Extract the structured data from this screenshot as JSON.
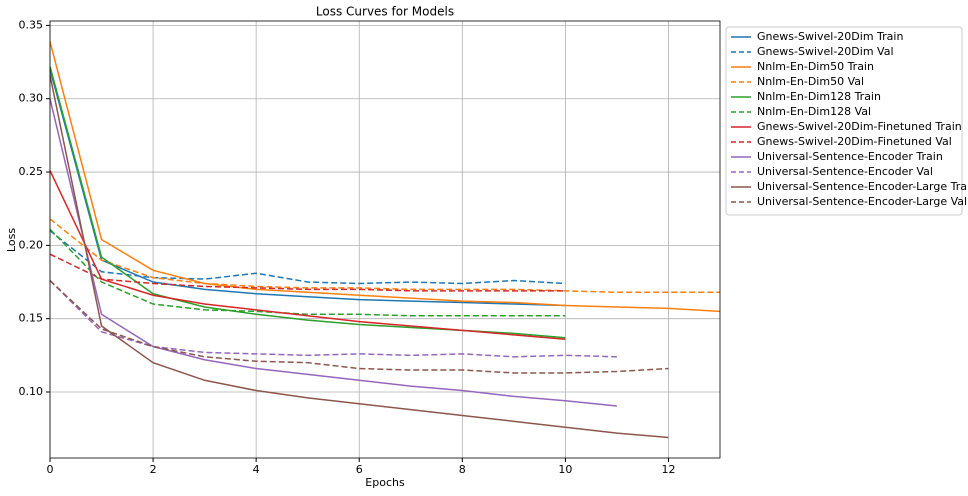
{
  "chart_data": {
    "type": "line",
    "title": "Loss Curves for Models",
    "x_label": "Epochs",
    "y_label": "Loss",
    "x": [
      0,
      1,
      2,
      3,
      4,
      5,
      6,
      7,
      8,
      9,
      10,
      11,
      12,
      13
    ],
    "xlim": [
      0,
      13
    ],
    "ylim": [
      0.055,
      0.353
    ],
    "xticks": [
      0,
      2,
      4,
      6,
      8,
      10,
      12
    ],
    "yticks": [
      {
        "value": 0.1,
        "label": "0.10"
      },
      0.15,
      {
        "value": 0.2,
        "label": "0.20"
      },
      0.25,
      {
        "value": 0.3,
        "label": "0.30"
      },
      0.35
    ],
    "grid": true,
    "legend": "outside right",
    "series": [
      {
        "name": "Gnews-Swivel-20Dim Train",
        "color": "#1f77b4",
        "linestyle": "solid",
        "values": [
          0.32,
          0.19,
          0.175,
          0.17,
          0.167,
          0.165,
          0.163,
          0.162,
          0.161,
          0.16,
          0.159,
          null,
          null,
          null
        ]
      },
      {
        "name": "Gnews-Swivel-20Dim Val",
        "color": "#1f77b4",
        "linestyle": "dashed",
        "values": [
          0.21,
          0.182,
          0.178,
          0.177,
          0.181,
          0.175,
          0.174,
          0.175,
          0.174,
          0.176,
          0.174,
          null,
          null,
          null
        ]
      },
      {
        "name": "Nnlm-En-Dim50 Train",
        "color": "#ff7f0e",
        "linestyle": "solid",
        "values": [
          0.339,
          0.204,
          0.183,
          0.174,
          0.17,
          0.168,
          0.166,
          0.164,
          0.162,
          0.161,
          0.159,
          0.158,
          0.157,
          0.155
        ]
      },
      {
        "name": "Nnlm-En-Dim50 Val",
        "color": "#ff7f0e",
        "linestyle": "dashed",
        "values": [
          0.218,
          0.19,
          0.178,
          0.174,
          0.172,
          0.171,
          0.171,
          0.17,
          0.17,
          0.17,
          0.169,
          0.168,
          0.168,
          0.168
        ]
      },
      {
        "name": "Nnlm-En-Dim128 Train",
        "color": "#2ca02c",
        "linestyle": "solid",
        "values": [
          0.322,
          0.192,
          0.167,
          0.158,
          0.153,
          0.149,
          0.146,
          0.144,
          0.142,
          0.14,
          0.137,
          null,
          null,
          null
        ]
      },
      {
        "name": "Nnlm-En-Dim128 Val",
        "color": "#2ca02c",
        "linestyle": "dashed",
        "values": [
          0.211,
          0.175,
          0.16,
          0.156,
          0.155,
          0.153,
          0.153,
          0.152,
          0.152,
          0.152,
          0.152,
          null,
          null,
          null
        ]
      },
      {
        "name": "Gnews-Swivel-20Dim-Finetuned Train",
        "color": "#d62728",
        "linestyle": "solid",
        "values": [
          0.251,
          0.177,
          0.166,
          0.16,
          0.156,
          0.152,
          0.148,
          0.145,
          0.142,
          0.139,
          0.136,
          null,
          null,
          null
        ]
      },
      {
        "name": "Gnews-Swivel-20Dim-Finetuned Val",
        "color": "#d62728",
        "linestyle": "dashed",
        "values": [
          0.194,
          0.177,
          0.174,
          0.172,
          0.171,
          0.17,
          0.17,
          0.169,
          0.169,
          0.169,
          0.169,
          null,
          null,
          null
        ]
      },
      {
        "name": "Universal-Sentence-Encoder Train",
        "color": "#9467bd",
        "linestyle": "solid",
        "values": [
          0.3,
          0.153,
          0.131,
          0.122,
          0.116,
          0.112,
          0.108,
          0.104,
          0.101,
          0.097,
          0.094,
          0.0905,
          null,
          null
        ]
      },
      {
        "name": "Universal-Sentence-Encoder Val",
        "color": "#9467bd",
        "linestyle": "dashed",
        "values": [
          0.176,
          0.141,
          0.131,
          0.127,
          0.126,
          0.125,
          0.126,
          0.125,
          0.126,
          0.124,
          0.125,
          0.124,
          null,
          null
        ]
      },
      {
        "name": "Universal-Sentence-Encoder-Large Train",
        "color": "#8c564b",
        "linestyle": "solid",
        "values": [
          0.316,
          0.145,
          0.12,
          0.108,
          0.101,
          0.096,
          0.092,
          0.088,
          0.084,
          0.08,
          0.076,
          0.072,
          0.069,
          null
        ]
      },
      {
        "name": "Universal-Sentence-Encoder-Large Val",
        "color": "#8c564b",
        "linestyle": "dashed",
        "values": [
          0.176,
          0.143,
          0.131,
          0.124,
          0.121,
          0.12,
          0.116,
          0.115,
          0.115,
          0.113,
          0.113,
          0.114,
          0.116,
          null
        ]
      }
    ]
  }
}
